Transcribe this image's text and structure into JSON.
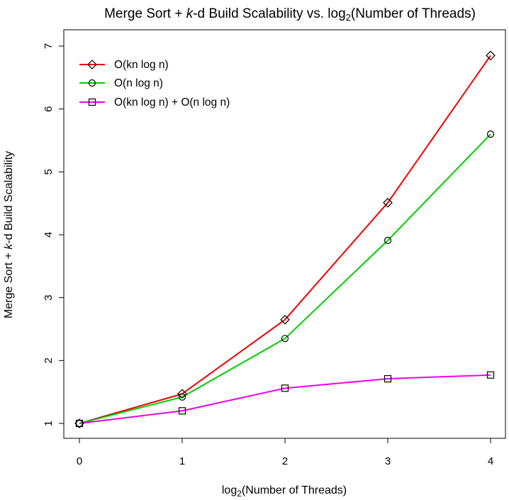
{
  "chart_data": {
    "type": "line",
    "title": {
      "prefix": "Merge Sort + ",
      "italic": "k",
      "middle": "-d Build Scalability vs. log",
      "sub": "2",
      "suffix": "(Number of Threads)"
    },
    "xlabel": {
      "prefix": "log",
      "sub": "2",
      "suffix": "(Number of Threads)"
    },
    "ylabel": {
      "prefix": "Merge Sort + ",
      "italic": "k",
      "suffix": "-d Build Scalability"
    },
    "x": [
      0,
      1,
      2,
      3,
      4
    ],
    "xlim": [
      0,
      4
    ],
    "ylim": [
      1,
      7
    ],
    "xticks": [
      0,
      1,
      2,
      3,
      4
    ],
    "yticks": [
      1,
      2,
      3,
      4,
      5,
      6,
      7
    ],
    "grid": false,
    "legend_position": "top-left",
    "series": [
      {
        "name": "O(kn log n)",
        "color": "#ee0000",
        "marker": "diamond",
        "values": [
          1.0,
          1.47,
          2.65,
          4.51,
          6.85
        ]
      },
      {
        "name": "O(n log n)",
        "color": "#00cc00",
        "marker": "circle",
        "values": [
          1.0,
          1.42,
          2.35,
          3.91,
          5.6
        ]
      },
      {
        "name": "O(kn log n) + O(n log n)",
        "color": "#ee00ee",
        "marker": "square",
        "values": [
          1.0,
          1.2,
          1.56,
          1.71,
          1.77
        ]
      }
    ]
  }
}
